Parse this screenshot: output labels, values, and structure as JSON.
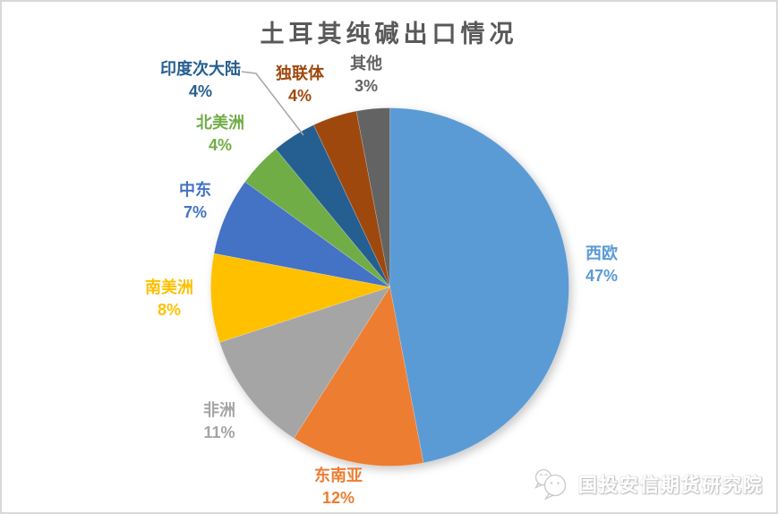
{
  "chart_data": {
    "type": "pie",
    "title": "土耳其纯碱出口情况",
    "unit": "%",
    "start_angle_deg": 0,
    "direction": "clockwise",
    "legend_position": "none",
    "label_style": "outside, category name over percent, text colored to match slice",
    "title_color": "#595959",
    "slices": [
      {
        "id": "west-europe",
        "label": "西欧",
        "value": 47,
        "pct": "47%",
        "color": "#5B9BD5"
      },
      {
        "id": "southeast-asia",
        "label": "东南亚",
        "value": 12,
        "pct": "12%",
        "color": "#ED7D31"
      },
      {
        "id": "africa",
        "label": "非洲",
        "value": 11,
        "pct": "11%",
        "color": "#A5A5A5"
      },
      {
        "id": "south-america",
        "label": "南美洲",
        "value": 8,
        "pct": "8%",
        "color": "#FFC000"
      },
      {
        "id": "middle-east",
        "label": "中东",
        "value": 7,
        "pct": "7%",
        "color": "#4472C4"
      },
      {
        "id": "north-america",
        "label": "北美洲",
        "value": 4,
        "pct": "4%",
        "color": "#70AD47"
      },
      {
        "id": "indian-subcontinent",
        "label": "印度次大陆",
        "value": 4,
        "pct": "4%",
        "color": "#255E91"
      },
      {
        "id": "cis",
        "label": "独联体",
        "value": 4,
        "pct": "4%",
        "color": "#9E480E"
      },
      {
        "id": "other",
        "label": "其他",
        "value": 3,
        "pct": "3%",
        "color": "#636363"
      }
    ]
  },
  "watermark": {
    "text": "国投安信期货研究院",
    "icon": "wechat-logo"
  }
}
